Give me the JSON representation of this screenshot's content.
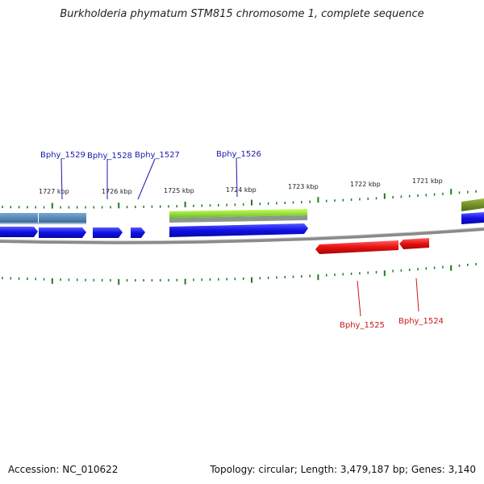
{
  "title": "Burkholderia phymatum STM815 chromosome 1, complete sequence",
  "footer": {
    "accession": "Accession: NC_010622",
    "summary": "Topology: circular; Length: 3,479,187 bp; Genes: 3,140"
  },
  "scale": {
    "ticks": [
      "1727 kbp",
      "1726 kbp",
      "1725 kbp",
      "1724 kbp",
      "1723 kbp",
      "1722 kbp",
      "1721 kbp"
    ]
  },
  "genes": {
    "forward": [
      "Bphy_1529",
      "Bphy_1528",
      "Bphy_1527",
      "Bphy_1526"
    ],
    "reverse": [
      "Bphy_1525",
      "Bphy_1524"
    ]
  },
  "colors": {
    "forward_gene": "#1010e8",
    "reverse_gene": "#e81010",
    "label_forward": "#1a1aa8",
    "label_reverse": "#c81818",
    "tick": "#1f7a1f",
    "backbone": "#888888",
    "feature_steel": "#4f86b8",
    "feature_green": "#8fe030",
    "feature_olive": "#6a8a20"
  }
}
